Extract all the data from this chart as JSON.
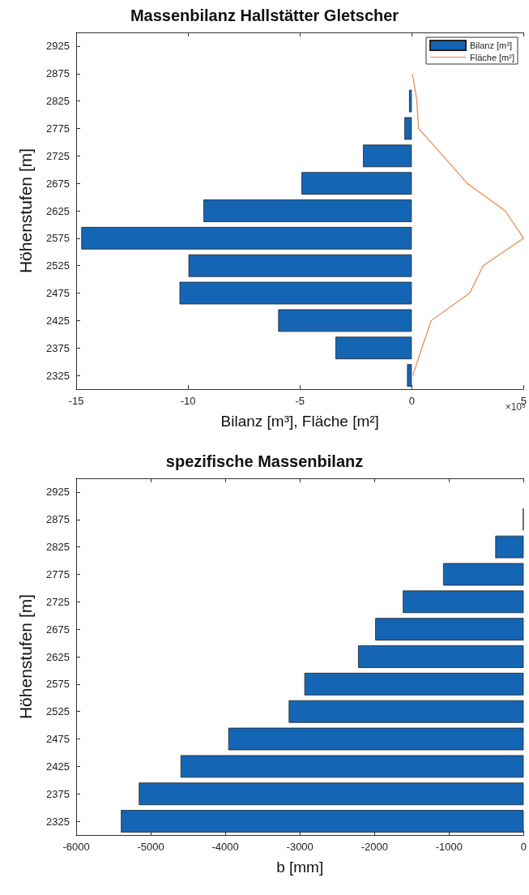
{
  "chart_data": [
    {
      "type": "bar",
      "orientation": "horizontal",
      "title": "Massenbilanz Hallstätter Gletscher",
      "xlabel": "Bilanz [m³], Fläche [m²]",
      "ylabel": "Höhenstufen [m]",
      "categories": [
        "2925",
        "2875",
        "2825",
        "2775",
        "2725",
        "2675",
        "2625",
        "2575",
        "2525",
        "2475",
        "2425",
        "2375",
        "2325"
      ],
      "series": [
        {
          "name": "Bilanz [m³]",
          "type": "bar",
          "color": "#1565b5",
          "values": [
            null,
            null,
            -0.12,
            -0.33,
            -2.18,
            -4.93,
            -9.31,
            -14.77,
            -9.98,
            -10.38,
            -5.97,
            -3.41,
            -0.21
          ]
        },
        {
          "name": "Fläche [m²]",
          "type": "line",
          "color": "#e8864a",
          "values": [
            null,
            0.03,
            0.23,
            0.3,
            1.4,
            2.48,
            4.17,
            5.0,
            3.19,
            2.59,
            0.87,
            0.45,
            0.05
          ]
        }
      ],
      "xlim": [
        -15,
        5
      ],
      "xticks": [
        -15,
        -10,
        -5,
        0,
        5
      ],
      "annotations": [
        "×10⁵"
      ],
      "legend": "top right",
      "grid": false,
      "marker": "none"
    },
    {
      "type": "bar",
      "orientation": "horizontal",
      "title": "spezifische Massenbilanz",
      "xlabel": "b [mm]",
      "ylabel": "Höhenstufen [m]",
      "categories": [
        "2925",
        "2875",
        "2825",
        "2775",
        "2725",
        "2675",
        "2625",
        "2575",
        "2525",
        "2475",
        "2425",
        "2375",
        "2325"
      ],
      "values": [
        null,
        -10,
        -380,
        -1080,
        -1620,
        -1990,
        -2220,
        -2940,
        -3150,
        -3960,
        -4600,
        -5160,
        -5400
      ],
      "color": "#1565b5",
      "xlim": [
        -6000,
        0
      ],
      "xticks": [
        -6000,
        -5000,
        -4000,
        -3000,
        -2000,
        -1000,
        0
      ],
      "grid": false
    }
  ]
}
